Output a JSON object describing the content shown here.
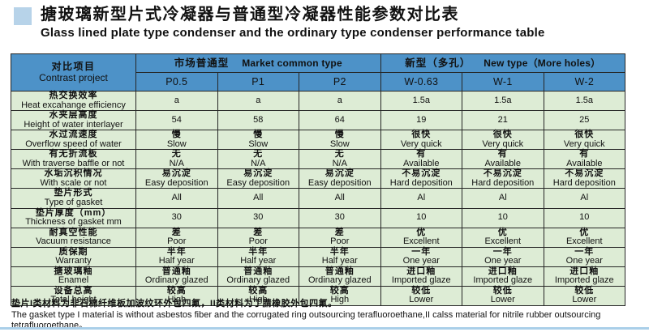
{
  "title": {
    "zh": "搪玻璃新型片式冷凝器与普通型冷凝器性能参数对比表",
    "en": "Glass lined plate type condenser and the ordinary type condenser performance table"
  },
  "colors": {
    "header_blue": "#4d92c8",
    "cell_green": "#ddecd5",
    "title_bullet_blue": "#b7d3e9",
    "bottom_strip_blue": "#aacfe9",
    "border": "#262626"
  },
  "table": {
    "corner": {
      "zh": "对比项目",
      "en": "Contrast project"
    },
    "groups": [
      {
        "zh": "市场普通型",
        "en": "Market common type",
        "cols": [
          "P0.5",
          "P1",
          "P2"
        ]
      },
      {
        "zh": "新型（多孔）",
        "en": "New type（More holes）",
        "cols": [
          "W-0.63",
          "W-1",
          "W-2"
        ]
      }
    ],
    "rows": [
      {
        "label": [
          "热交换效率",
          "Heat excahange efficiency"
        ],
        "cells": [
          [
            "a"
          ],
          [
            "a"
          ],
          [
            "a"
          ],
          [
            "1.5a"
          ],
          [
            "1.5a"
          ],
          [
            "1.5a"
          ]
        ]
      },
      {
        "label": [
          "水夹层高度",
          "Height of water interlayer"
        ],
        "cells": [
          [
            "54"
          ],
          [
            "58"
          ],
          [
            "64"
          ],
          [
            "19"
          ],
          [
            "21"
          ],
          [
            "25"
          ]
        ]
      },
      {
        "label": [
          "水过流速度",
          "Overflow speed of water"
        ],
        "cells": [
          [
            "慢",
            "Slow"
          ],
          [
            "慢",
            "Slow"
          ],
          [
            "慢",
            "Slow"
          ],
          [
            "很快",
            "Very quick"
          ],
          [
            "很快",
            "Very quick"
          ],
          [
            "很快",
            "Very quick"
          ]
        ]
      },
      {
        "label": [
          "有无折流板",
          "With traverse baffle or not"
        ],
        "cells": [
          [
            "无",
            "N/A"
          ],
          [
            "无",
            "N/A"
          ],
          [
            "无",
            "N/A"
          ],
          [
            "有",
            "Available"
          ],
          [
            "有",
            "Available"
          ],
          [
            "有",
            "Available"
          ]
        ]
      },
      {
        "label": [
          "水垢沉积情况",
          "With scale or not"
        ],
        "cells": [
          [
            "易沉淀",
            "Easy deposition"
          ],
          [
            "易沉淀",
            "Easy deposition"
          ],
          [
            "易沉淀",
            "Easy deposition"
          ],
          [
            "不易沉淀",
            "Hard deposition"
          ],
          [
            "不易沉淀",
            "Hard deposition"
          ],
          [
            "不易沉淀",
            "Hard deposition"
          ]
        ]
      },
      {
        "label": [
          "垫片形式",
          "Type of gasket"
        ],
        "cells": [
          [
            "All"
          ],
          [
            "All"
          ],
          [
            "All"
          ],
          [
            "Al"
          ],
          [
            "Al"
          ],
          [
            "Al"
          ]
        ]
      },
      {
        "label": [
          "垫片厚度（mm）",
          "Thickness of gasket mm"
        ],
        "cells": [
          [
            "30"
          ],
          [
            "30"
          ],
          [
            "30"
          ],
          [
            "10"
          ],
          [
            "10"
          ],
          [
            "10"
          ]
        ]
      },
      {
        "label": [
          "耐真空性能",
          "Vacuum resistance"
        ],
        "cells": [
          [
            "差",
            "Poor"
          ],
          [
            "差",
            "Poor"
          ],
          [
            "差",
            "Poor"
          ],
          [
            "优",
            "Excellent"
          ],
          [
            "优",
            "Excellent"
          ],
          [
            "优",
            "Excellent"
          ]
        ]
      },
      {
        "label": [
          "质保期",
          "Warranty"
        ],
        "cells": [
          [
            "半年",
            "Half year"
          ],
          [
            "半年",
            "Half year"
          ],
          [
            "半年",
            "Half year"
          ],
          [
            "一年",
            "One year"
          ],
          [
            "一年",
            "One year"
          ],
          [
            "一年",
            "One year"
          ]
        ]
      },
      {
        "label": [
          "搪玻璃釉",
          "Enamel"
        ],
        "cells": [
          [
            "普通釉",
            "Ordinary glazed"
          ],
          [
            "普通釉",
            "Ordinary glazed"
          ],
          [
            "普通釉",
            "Ordinary glazed"
          ],
          [
            "进口釉",
            "Imported glaze"
          ],
          [
            "进口釉",
            "Imported glaze"
          ],
          [
            "进口釉",
            "Imported glaze"
          ]
        ]
      },
      {
        "label": [
          "设备总高",
          "Total height"
        ],
        "cells": [
          [
            "较高",
            "High"
          ],
          [
            "较高",
            "High"
          ],
          [
            "较高",
            "High"
          ],
          [
            "较低",
            "Lower"
          ],
          [
            "较低",
            "Lower"
          ],
          [
            "较低",
            "Lower"
          ]
        ]
      }
    ]
  },
  "footnote": {
    "zh": "垫片I类材料为非石棉纤维板加波纹环外包四氟，II类材料为丁腈橡胶外包四氟。",
    "en": "The gasket type I material is without asbestos fiber and the corrugated ring outsourcing terafluoroethane,II calss material for nitrile rubber outsourcing tetrafluoroethane。"
  }
}
